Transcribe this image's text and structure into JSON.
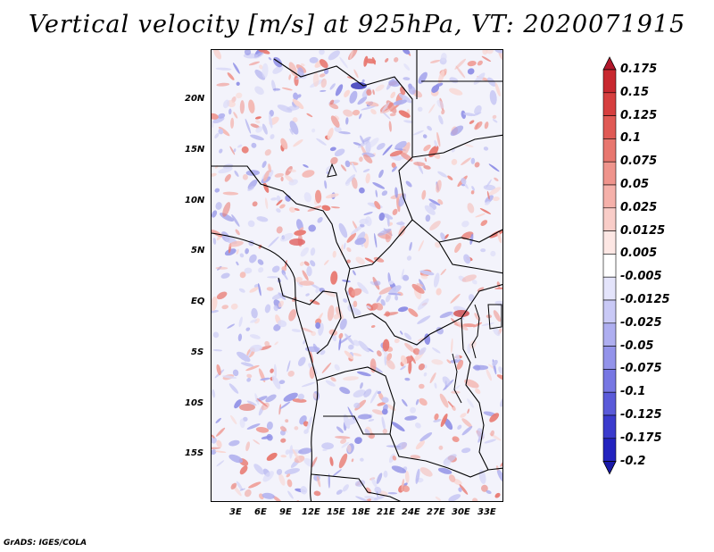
{
  "title": "Vertical velocity [m/s] at 925hPa, VT: 2020071915",
  "map": {
    "lat_labels": [
      "20N",
      "15N",
      "10N",
      "5N",
      "EQ",
      "5S",
      "10S",
      "15S"
    ],
    "lon_labels": [
      "3E",
      "6E",
      "9E",
      "12E",
      "15E",
      "18E",
      "21E",
      "24E",
      "27E",
      "30E",
      "33E"
    ]
  },
  "colorbar": {
    "labels": [
      "0.175",
      "0.15",
      "0.125",
      "0.1",
      "0.075",
      "0.05",
      "0.025",
      "0.0125",
      "0.005",
      "-0.005",
      "-0.0125",
      "-0.025",
      "-0.05",
      "-0.075",
      "-0.1",
      "-0.125",
      "-0.175",
      "-0.2"
    ],
    "colors": [
      "#b2182b",
      "#c8282f",
      "#d63f3f",
      "#e05a55",
      "#e8776f",
      "#ef948c",
      "#f5b1aa",
      "#f9cdc8",
      "#fde7e4",
      "#ffffff",
      "#e4e4fb",
      "#c9c9f6",
      "#aeaef0",
      "#9393ea",
      "#7777e3",
      "#5a5ad9",
      "#3b3bcd",
      "#2323bf",
      "#1a1aa8"
    ]
  },
  "credit": "GrADS: IGES/COLA"
}
